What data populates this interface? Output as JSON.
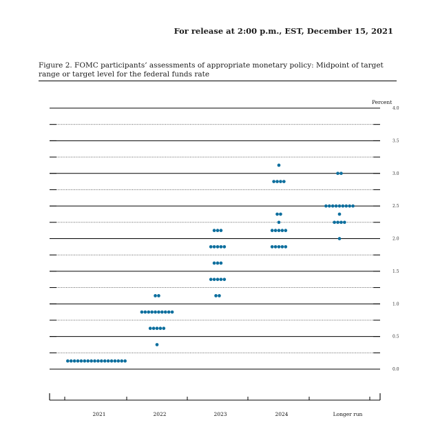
{
  "release_note": "For release at 2:00 p.m., EST, December 15, 2021",
  "caption": "Figure 2.  FOMC participants’ assessments of appropriate monetary policy:  Midpoint of target range or target level for the federal funds rate",
  "colors": {
    "dot": "#0e6f9e",
    "line": "#000000"
  },
  "chart_data": {
    "type": "scatter",
    "title": "",
    "ylabel": "Percent",
    "xlabel": "",
    "ylim": [
      0,
      4.0
    ],
    "y_ticks": [
      "0.0",
      "0.5",
      "1.0",
      "1.5",
      "2.0",
      "2.5",
      "3.0",
      "3.5",
      "4.0"
    ],
    "categories": [
      "2021",
      "2022",
      "2023",
      "2024",
      "Longer run"
    ],
    "grid": true,
    "series": [
      {
        "category": "2021",
        "points": [
          {
            "y": 0.125,
            "count": 18
          }
        ]
      },
      {
        "category": "2022",
        "points": [
          {
            "y": 0.375,
            "count": 1
          },
          {
            "y": 0.625,
            "count": 5
          },
          {
            "y": 0.875,
            "count": 10
          },
          {
            "y": 1.125,
            "count": 2
          }
        ]
      },
      {
        "category": "2023",
        "points": [
          {
            "y": 1.125,
            "count": 2
          },
          {
            "y": 1.375,
            "count": 5
          },
          {
            "y": 1.625,
            "count": 3
          },
          {
            "y": 1.875,
            "count": 5
          },
          {
            "y": 2.125,
            "count": 3
          }
        ]
      },
      {
        "category": "2024",
        "points": [
          {
            "y": 1.875,
            "count": 5
          },
          {
            "y": 2.125,
            "count": 5
          },
          {
            "y": 2.25,
            "count": 1
          },
          {
            "y": 2.375,
            "count": 2
          },
          {
            "y": 2.875,
            "count": 4
          },
          {
            "y": 3.125,
            "count": 1
          }
        ]
      },
      {
        "category": "Longer run",
        "points": [
          {
            "y": 2.0,
            "count": 1
          },
          {
            "y": 2.25,
            "count": 4
          },
          {
            "y": 2.375,
            "count": 1
          },
          {
            "y": 2.5,
            "count": 9
          },
          {
            "y": 3.0,
            "count": 2
          }
        ]
      }
    ]
  }
}
